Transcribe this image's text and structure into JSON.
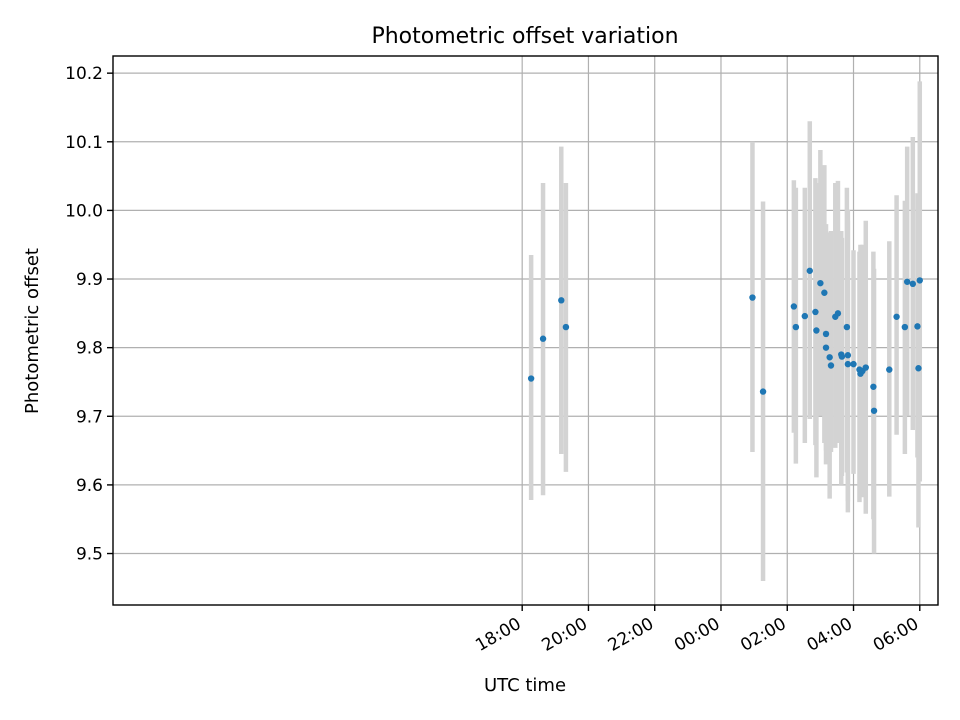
{
  "chart_data": {
    "type": "scatter",
    "title": "Photometric offset variation",
    "xlabel": "UTC time",
    "ylabel": "Photometric offset",
    "x_unit": "hours relative to 00:00 UTC",
    "xlim": [
      -18.35,
      6.55
    ],
    "ylim": [
      9.425,
      10.225
    ],
    "xticks": [
      {
        "value": -6,
        "label": "18:00"
      },
      {
        "value": -4,
        "label": "20:00"
      },
      {
        "value": -2,
        "label": "22:00"
      },
      {
        "value": 0,
        "label": "00:00"
      },
      {
        "value": 2,
        "label": "02:00"
      },
      {
        "value": 4,
        "label": "04:00"
      },
      {
        "value": 6,
        "label": "06:00"
      }
    ],
    "yticks": [
      9.5,
      9.6,
      9.7,
      9.8,
      9.9,
      10.0,
      10.1,
      10.2
    ],
    "ytick_labels": [
      "9.5",
      "9.6",
      "9.7",
      "9.8",
      "9.9",
      "10.0",
      "10.1",
      "10.2"
    ],
    "grid": true,
    "colors": {
      "point": "#1f77b4",
      "errorbar": "#d3d3d3",
      "grid": "#b0b0b0"
    },
    "series": [
      {
        "x": [
          -5.73,
          -5.37,
          -4.82,
          -4.68,
          0.95,
          1.27,
          2.2,
          2.26,
          2.53,
          2.68,
          2.85,
          2.88,
          3.0,
          3.12,
          3.17,
          3.17,
          3.28,
          3.32,
          3.45,
          3.53,
          3.63,
          3.65,
          3.8,
          3.83,
          3.83,
          4.0,
          4.18,
          4.21,
          4.27,
          4.37,
          4.6,
          4.62,
          5.08,
          5.3,
          5.55,
          5.62,
          5.79,
          5.93,
          5.96,
          6.0
        ],
        "y": [
          9.755,
          9.813,
          9.869,
          9.83,
          9.873,
          9.736,
          9.86,
          9.83,
          9.846,
          9.912,
          9.852,
          9.825,
          9.894,
          9.88,
          9.82,
          9.8,
          9.786,
          9.774,
          9.845,
          9.85,
          9.79,
          9.787,
          9.83,
          9.776,
          9.789,
          9.776,
          9.768,
          9.762,
          9.766,
          9.771,
          9.743,
          9.708,
          9.768,
          9.845,
          9.83,
          9.896,
          9.893,
          9.831,
          9.77,
          9.898
        ],
        "yerr_low": [
          9.578,
          9.585,
          9.645,
          9.619,
          9.648,
          9.46,
          9.676,
          9.631,
          9.661,
          9.696,
          9.658,
          9.611,
          9.701,
          9.661,
          9.65,
          9.63,
          9.58,
          9.648,
          9.654,
          9.661,
          9.6,
          9.613,
          9.618,
          9.56,
          9.576,
          9.616,
          9.575,
          9.585,
          9.582,
          9.558,
          9.55,
          9.5,
          9.583,
          9.673,
          9.645,
          9.701,
          9.68,
          9.64,
          9.538,
          9.605
        ],
        "yerr_high": [
          9.935,
          10.04,
          10.093,
          10.04,
          10.1,
          10.013,
          10.044,
          10.033,
          10.033,
          10.13,
          10.047,
          10.04,
          10.088,
          10.066,
          9.98,
          9.963,
          9.968,
          9.97,
          10.04,
          10.043,
          9.97,
          9.96,
          10.033,
          9.985,
          10.001,
          9.942,
          9.94,
          9.95,
          9.95,
          9.985,
          9.94,
          9.915,
          9.955,
          10.022,
          10.014,
          10.093,
          10.107,
          10.025,
          9.996,
          10.188
        ]
      }
    ]
  }
}
